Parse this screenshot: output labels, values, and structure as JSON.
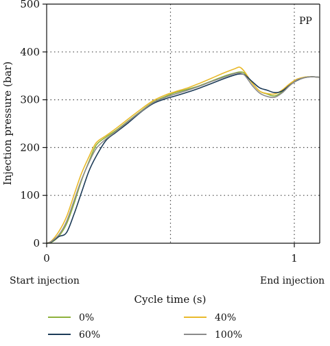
{
  "chart_data": {
    "type": "line",
    "xlabel": "Cycle time (s)",
    "ylabel": "Injection pressure (bar)",
    "xlim": [
      0,
      1.1
    ],
    "ylim": [
      0,
      500
    ],
    "x_ticks": [
      0,
      1
    ],
    "x_tick_labels": [
      "0",
      "1"
    ],
    "y_ticks": [
      0,
      100,
      200,
      300,
      400,
      500
    ],
    "y_tick_labels": [
      "0",
      "100",
      "200",
      "300",
      "400",
      "500"
    ],
    "grid": "dotted",
    "panel_tag": "PP",
    "annotations": {
      "start": "Start injection",
      "end": "End injection"
    },
    "legend_placement": "bottom",
    "series": [
      {
        "name": "0%",
        "color": "#8db13a",
        "x": [
          0,
          0.02,
          0.05,
          0.08,
          0.11,
          0.14,
          0.17,
          0.2,
          0.24,
          0.28,
          0.33,
          0.38,
          0.43,
          0.48,
          0.52,
          0.57,
          0.62,
          0.67,
          0.72,
          0.76,
          0.78,
          0.8,
          0.83,
          0.86,
          0.89,
          0.92,
          0.95,
          0.98,
          1.01,
          1.04,
          1.07,
          1.1
        ],
        "values": [
          0,
          2,
          15,
          40,
          82,
          130,
          170,
          205,
          222,
          236,
          256,
          276,
          295,
          307,
          315,
          322,
          330,
          340,
          350,
          356,
          358,
          355,
          335,
          318,
          312,
          308,
          316,
          331,
          342,
          347,
          348,
          347
        ]
      },
      {
        "name": "40%",
        "color": "#e9b92a",
        "x": [
          0,
          0.02,
          0.05,
          0.08,
          0.11,
          0.14,
          0.17,
          0.2,
          0.24,
          0.28,
          0.33,
          0.38,
          0.43,
          0.48,
          0.52,
          0.57,
          0.62,
          0.67,
          0.72,
          0.76,
          0.78,
          0.8,
          0.83,
          0.86,
          0.89,
          0.92,
          0.95,
          0.98,
          1.01,
          1.04,
          1.07,
          1.1
        ],
        "values": [
          0,
          5,
          25,
          55,
          100,
          145,
          180,
          210,
          225,
          240,
          260,
          280,
          298,
          310,
          317,
          325,
          335,
          346,
          357,
          365,
          368,
          358,
          335,
          318,
          313,
          312,
          320,
          333,
          343,
          347,
          348,
          347
        ]
      },
      {
        "name": "60%",
        "color": "#1c3b57",
        "x": [
          0,
          0.02,
          0.05,
          0.08,
          0.11,
          0.14,
          0.17,
          0.2,
          0.24,
          0.28,
          0.33,
          0.38,
          0.43,
          0.48,
          0.52,
          0.57,
          0.62,
          0.67,
          0.72,
          0.76,
          0.78,
          0.8,
          0.83,
          0.86,
          0.89,
          0.92,
          0.95,
          0.98,
          1.01,
          1.04,
          1.07,
          1.1
        ],
        "values": [
          0,
          3,
          14,
          22,
          60,
          105,
          150,
          182,
          215,
          232,
          252,
          274,
          292,
          302,
          308,
          316,
          325,
          335,
          345,
          352,
          354,
          352,
          338,
          325,
          320,
          315,
          318,
          330,
          340,
          346,
          348,
          347
        ]
      },
      {
        "name": "100%",
        "color": "#8a8a8a",
        "x": [
          0,
          0.02,
          0.05,
          0.08,
          0.11,
          0.14,
          0.17,
          0.2,
          0.24,
          0.28,
          0.33,
          0.38,
          0.43,
          0.48,
          0.52,
          0.57,
          0.62,
          0.67,
          0.72,
          0.76,
          0.78,
          0.8,
          0.83,
          0.86,
          0.89,
          0.92,
          0.95,
          0.98,
          1.01,
          1.04,
          1.07,
          1.1
        ],
        "values": [
          0,
          4,
          18,
          45,
          88,
          132,
          168,
          198,
          218,
          234,
          255,
          275,
          294,
          305,
          312,
          320,
          329,
          339,
          348,
          355,
          356,
          351,
          330,
          314,
          307,
          305,
          314,
          329,
          341,
          346,
          348,
          347
        ]
      }
    ]
  }
}
